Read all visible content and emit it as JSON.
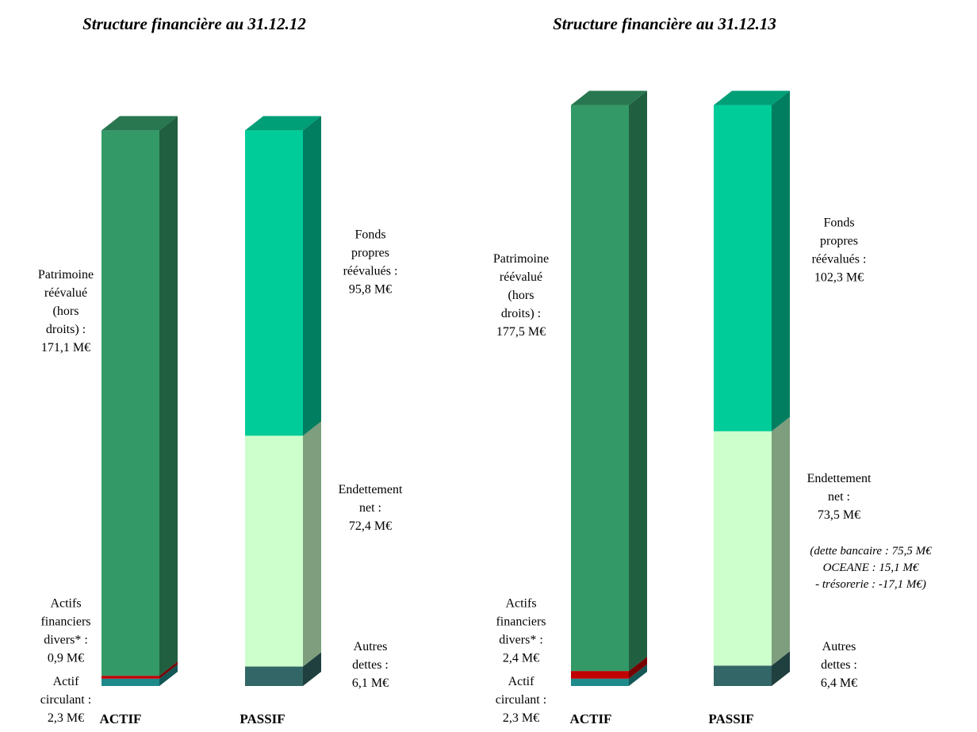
{
  "colors": {
    "patrimoine": "#339966",
    "actifs_financiers": "#c00000",
    "actif_circulant": "#1f8a8a",
    "fonds_propres": "#00cc99",
    "endettement": "#ccffcc",
    "autres_dettes": "#336666"
  },
  "chart_data": [
    {
      "type": "bar",
      "stacked": true,
      "title": "Structure financière au 31.12.12",
      "categories": [
        "ACTIF",
        "PASSIF"
      ],
      "columns": [
        {
          "label": "ACTIF",
          "segments": [
            {
              "key": "actif_circulant",
              "value": 2.3,
              "label_lines": [
                "Actif",
                "circulant :",
                "2,3 M€"
              ]
            },
            {
              "key": "actifs_financiers",
              "value": 0.9,
              "label_lines": [
                "Actifs",
                "financiers",
                "divers* :",
                "0,9 M€"
              ]
            },
            {
              "key": "patrimoine",
              "value": 171.1,
              "label_lines": [
                "Patrimoine",
                "réévalué",
                "(hors",
                "droits) :",
                "171,1 M€"
              ]
            }
          ]
        },
        {
          "label": "PASSIF",
          "segments": [
            {
              "key": "autres_dettes",
              "value": 6.1,
              "label_lines": [
                "Autres",
                "dettes :",
                "6,1 M€"
              ]
            },
            {
              "key": "endettement",
              "value": 72.4,
              "label_lines": [
                "Endettement",
                "net :",
                "72,4 M€"
              ]
            },
            {
              "key": "fonds_propres",
              "value": 95.8,
              "label_lines": [
                "Fonds",
                "propres",
                "réévalués :",
                "95,8 M€"
              ]
            }
          ]
        }
      ]
    },
    {
      "type": "bar",
      "stacked": true,
      "title": "Structure financière au 31.12.13",
      "categories": [
        "ACTIF",
        "PASSIF"
      ],
      "columns": [
        {
          "label": "ACTIF",
          "segments": [
            {
              "key": "actif_circulant",
              "value": 2.3,
              "label_lines": [
                "Actif",
                "circulant :",
                "2,3 M€"
              ]
            },
            {
              "key": "actifs_financiers",
              "value": 2.4,
              "label_lines": [
                "Actifs",
                "financiers",
                "divers* :",
                "2,4 M€"
              ]
            },
            {
              "key": "patrimoine",
              "value": 177.5,
              "label_lines": [
                "Patrimoine",
                "réévalué",
                "(hors",
                "droits) :",
                "177,5 M€"
              ]
            }
          ]
        },
        {
          "label": "PASSIF",
          "segments": [
            {
              "key": "autres_dettes",
              "value": 6.4,
              "label_lines": [
                "Autres",
                "dettes :",
                "6,4 M€"
              ]
            },
            {
              "key": "endettement",
              "value": 73.5,
              "label_lines": [
                "Endettement",
                "net :",
                "73,5 M€"
              ],
              "note_lines": [
                "(dette bancaire : 75,5 M€",
                "OCEANE : 15,1 M€",
                "- trésorerie : -17,1 M€)"
              ]
            },
            {
              "key": "fonds_propres",
              "value": 102.3,
              "label_lines": [
                "Fonds",
                "propres",
                "réévalués :",
                "102,3 M€"
              ]
            }
          ]
        }
      ]
    }
  ]
}
